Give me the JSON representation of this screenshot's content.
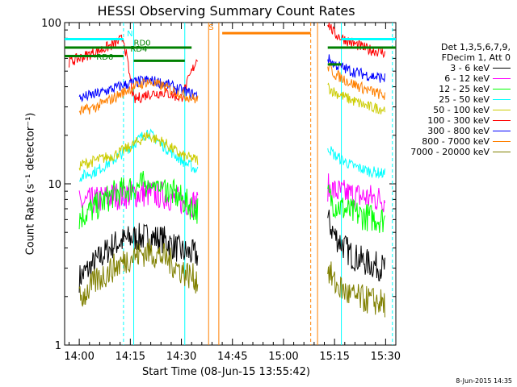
{
  "chart_data": {
    "type": "line",
    "title": "HESSI Observing Summary Count Rates",
    "xlabel": "Start Time (08-Jun-15 13:55:42)",
    "ylabel": "Count Rate (s⁻¹ detector⁻¹)",
    "yscale": "log",
    "ylim": [
      1,
      100
    ],
    "xlim": [
      "13:55:42",
      "15:33:00"
    ],
    "xticks": [
      "14:00",
      "14:15",
      "14:30",
      "14:45",
      "15:00",
      "15:15",
      "15:30"
    ],
    "yticks": [
      "1",
      "10",
      "100"
    ],
    "legend_header": [
      "Det 1,3,5,6,7,9,",
      "FDecim 1, Att 0"
    ],
    "legend_placement": "right",
    "grid": false,
    "timestamp": "8-Jun-2015 14:35",
    "gaps": [
      [
        "14:38",
        "15:12"
      ]
    ],
    "series": [
      {
        "name": "3 - 6 keV",
        "color": "#000000",
        "x": [
          "14:00",
          "14:05",
          "14:10",
          "14:15",
          "14:20",
          "14:25",
          "14:30",
          "14:35",
          "15:13",
          "15:15",
          "15:20",
          "15:25",
          "15:30"
        ],
        "y": [
          2.6,
          3.3,
          4.2,
          4.6,
          4.7,
          4.5,
          3.8,
          3.6,
          6.0,
          4.8,
          3.6,
          3.2,
          3.0
        ]
      },
      {
        "name": "6 - 12 keV",
        "color": "#ff00ff",
        "x": [
          "14:00",
          "14:05",
          "14:10",
          "14:15",
          "14:20",
          "14:25",
          "14:30",
          "14:35",
          "15:13",
          "15:15",
          "15:20",
          "15:25",
          "15:30"
        ],
        "y": [
          7.5,
          7.9,
          8.4,
          8.6,
          8.7,
          8.5,
          7.8,
          7.5,
          9.5,
          9.0,
          8.5,
          8.2,
          8.0
        ]
      },
      {
        "name": "12 - 25 keV",
        "color": "#00ff00",
        "x": [
          "14:00",
          "14:05",
          "14:10",
          "14:15",
          "14:20",
          "14:25",
          "14:30",
          "14:35",
          "15:13",
          "15:15",
          "15:20",
          "15:25",
          "15:30"
        ],
        "y": [
          6.2,
          7.2,
          8.6,
          9.4,
          10.0,
          9.5,
          8.0,
          6.8,
          8.5,
          7.5,
          6.6,
          6.2,
          6.0
        ]
      },
      {
        "name": "25 - 50 keV",
        "color": "#00ffff",
        "x": [
          "14:00",
          "14:05",
          "14:10",
          "14:15",
          "14:20",
          "14:25",
          "14:30",
          "14:35",
          "15:13",
          "15:15",
          "15:20",
          "15:25",
          "15:30"
        ],
        "y": [
          11,
          12,
          14,
          17,
          21,
          17,
          14,
          12,
          17,
          15,
          13,
          12,
          11.5
        ]
      },
      {
        "name": "50 - 100 keV",
        "color": "#cccc00",
        "x": [
          "14:00",
          "14:05",
          "14:10",
          "14:15",
          "14:20",
          "14:25",
          "14:30",
          "14:35",
          "15:13",
          "15:15",
          "15:20",
          "15:25",
          "15:30"
        ],
        "y": [
          13,
          14,
          15,
          17,
          20,
          18,
          15,
          14,
          40,
          37,
          33,
          30,
          29
        ]
      },
      {
        "name": "100 - 300 keV",
        "color": "#ff0000",
        "x": [
          "13:57",
          "14:00",
          "14:05",
          "14:10",
          "14:13",
          "14:16",
          "14:20",
          "14:25",
          "14:30",
          "14:35",
          "15:13",
          "15:15",
          "15:20",
          "15:25",
          "15:30"
        ],
        "y": [
          57,
          60,
          66,
          73,
          80,
          33,
          36,
          37,
          34,
          63,
          100,
          85,
          75,
          68,
          65
        ]
      },
      {
        "name": "300 - 800 keV",
        "color": "#0000ff",
        "x": [
          "14:00",
          "14:05",
          "14:10",
          "14:15",
          "14:20",
          "14:25",
          "14:30",
          "14:35",
          "15:13",
          "15:15",
          "15:20",
          "15:25",
          "15:30"
        ],
        "y": [
          34,
          36,
          39,
          42,
          44,
          42,
          38,
          35,
          60,
          55,
          50,
          47,
          45
        ]
      },
      {
        "name": "800 - 7000 keV",
        "color": "#ff8000",
        "x": [
          "14:00",
          "14:05",
          "14:10",
          "14:15",
          "14:20",
          "14:25",
          "14:30",
          "14:35",
          "15:13",
          "15:15",
          "15:20",
          "15:25",
          "15:30"
        ],
        "y": [
          28,
          30,
          34,
          39,
          43,
          40,
          36,
          33,
          54,
          48,
          42,
          38,
          35
        ]
      },
      {
        "name": "7000 - 20000 keV",
        "color": "#808000",
        "x": [
          "14:00",
          "14:05",
          "14:10",
          "14:15",
          "14:20",
          "14:25",
          "14:30",
          "14:35",
          "15:13",
          "15:15",
          "15:20",
          "15:25",
          "15:30"
        ],
        "y": [
          1.9,
          2.5,
          3.0,
          3.5,
          3.8,
          3.5,
          2.9,
          2.5,
          3.0,
          2.4,
          2.0,
          1.9,
          1.8
        ]
      }
    ],
    "annotations": [
      {
        "text": "N",
        "color": "#00ffff",
        "x": "14:14",
        "y": 82,
        "kind": "night"
      },
      {
        "text": "RD0",
        "color": "#008000",
        "x": "14:16",
        "y": 72
      },
      {
        "text": "RD4",
        "color": "#008000",
        "x": "14:15",
        "y": 66
      },
      {
        "text": "RD6",
        "color": "#008000",
        "x": "14:05",
        "y": 59
      },
      {
        "text": "S",
        "color": "#ff8000",
        "x": "14:38",
        "y": 90,
        "kind": "saa"
      }
    ],
    "bars": [
      {
        "name": "night",
        "color": "#00ffff",
        "y": 79,
        "ranges": [
          [
            "13:55:42",
            "14:13"
          ],
          [
            "15:17",
            "15:33"
          ]
        ]
      },
      {
        "name": "rd",
        "color": "#008000",
        "y": 70,
        "ranges": [
          [
            "13:55:42",
            "14:33"
          ],
          [
            "15:13",
            "15:33"
          ]
        ]
      },
      {
        "name": "rd6",
        "color": "#008000",
        "y": 62,
        "ranges": [
          [
            "13:55:42",
            "14:13"
          ]
        ]
      },
      {
        "name": "rd4",
        "color": "#008000",
        "y": 58,
        "ranges": [
          [
            "14:16",
            "14:31"
          ]
        ]
      },
      {
        "name": "rd2",
        "color": "#008000",
        "y": 55,
        "ranges": [
          [
            "15:13",
            "15:17"
          ]
        ]
      },
      {
        "name": "saa",
        "color": "#ff8000",
        "y": 86,
        "ranges": [
          [
            "14:42",
            "15:08"
          ]
        ]
      }
    ],
    "vlines": [
      {
        "x": "14:13",
        "color": "#00ffff",
        "dash": true
      },
      {
        "x": "14:16",
        "color": "#00ffff",
        "dash": false
      },
      {
        "x": "14:31",
        "color": "#00ffff",
        "dash": false
      },
      {
        "x": "14:38",
        "color": "#ff8000",
        "dash": false
      },
      {
        "x": "14:41",
        "color": "#ff8000",
        "dash": false
      },
      {
        "x": "15:08",
        "color": "#ff8000",
        "dash": true
      },
      {
        "x": "15:10",
        "color": "#ff8000",
        "dash": false
      },
      {
        "x": "15:17",
        "color": "#00ffff",
        "dash": false
      },
      {
        "x": "15:32",
        "color": "#00ffff",
        "dash": true
      }
    ]
  }
}
